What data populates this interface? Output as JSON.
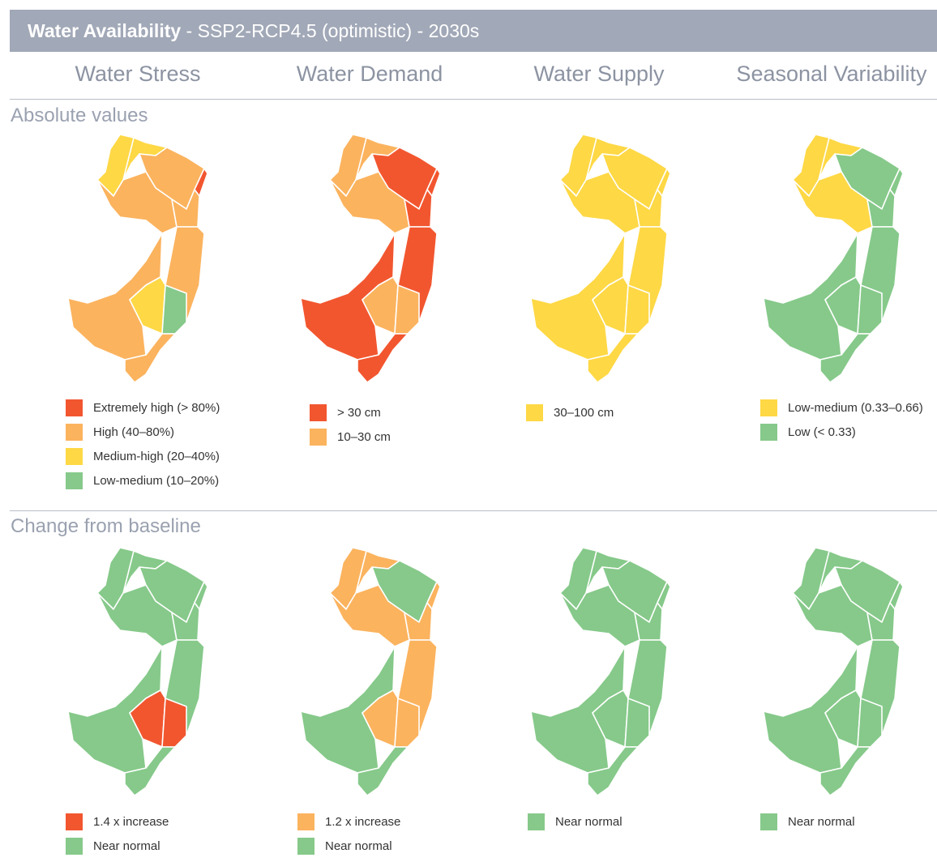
{
  "header": {
    "title_bold": "Water Availability",
    "title_rest": " - SSP2-RCP4.5 (optimistic) - 2030s"
  },
  "columns": [
    "Water Stress",
    "Water Demand",
    "Water Supply",
    "Seasonal Variability"
  ],
  "sections": {
    "absolute": "Absolute values",
    "change": "Change from baseline"
  },
  "colors": {
    "extremely_high": "#f2562f",
    "high": "#fbb35e",
    "medium_high": "#fed845",
    "low_medium": "#86c98a",
    "header_bg": "#a1a8b7",
    "region_border": "#ffffff"
  },
  "map_region_names": [
    "northwest",
    "north-top",
    "northeast",
    "hudson-strip",
    "central-west",
    "central-north",
    "east",
    "southwest",
    "south-center",
    "south-east",
    "cape"
  ],
  "maps": {
    "absolute": [
      {
        "northwest": "medium_high",
        "north-top": "medium_high",
        "northeast": "high",
        "hudson-strip": "extremely_high",
        "central-west": "high",
        "central-north": "high",
        "east": "high",
        "southwest": "high",
        "south-center": "medium_high",
        "south-east": "low_medium",
        "cape": "high"
      },
      {
        "northwest": "high",
        "north-top": "high",
        "northeast": "extremely_high",
        "hudson-strip": "extremely_high",
        "central-west": "high",
        "central-north": "extremely_high",
        "east": "extremely_high",
        "southwest": "extremely_high",
        "south-center": "high",
        "south-east": "high",
        "cape": "extremely_high"
      },
      {
        "northwest": "medium_high",
        "north-top": "medium_high",
        "northeast": "medium_high",
        "hudson-strip": "medium_high",
        "central-west": "medium_high",
        "central-north": "medium_high",
        "east": "medium_high",
        "southwest": "medium_high",
        "south-center": "medium_high",
        "south-east": "medium_high",
        "cape": "medium_high"
      },
      {
        "northwest": "medium_high",
        "north-top": "medium_high",
        "northeast": "low_medium",
        "hudson-strip": "low_medium",
        "central-west": "medium_high",
        "central-north": "low_medium",
        "east": "low_medium",
        "southwest": "low_medium",
        "south-center": "low_medium",
        "south-east": "low_medium",
        "cape": "low_medium"
      }
    ],
    "change": [
      {
        "northwest": "low_medium",
        "north-top": "low_medium",
        "northeast": "low_medium",
        "hudson-strip": "low_medium",
        "central-west": "low_medium",
        "central-north": "low_medium",
        "east": "low_medium",
        "southwest": "low_medium",
        "south-center": "extremely_high",
        "south-east": "extremely_high",
        "cape": "low_medium"
      },
      {
        "northwest": "high",
        "north-top": "high",
        "northeast": "low_medium",
        "hudson-strip": "high",
        "central-west": "high",
        "central-north": "high",
        "east": "high",
        "southwest": "low_medium",
        "south-center": "high",
        "south-east": "high",
        "cape": "low_medium"
      },
      {
        "northwest": "low_medium",
        "north-top": "low_medium",
        "northeast": "low_medium",
        "hudson-strip": "low_medium",
        "central-west": "low_medium",
        "central-north": "low_medium",
        "east": "low_medium",
        "southwest": "low_medium",
        "south-center": "low_medium",
        "south-east": "low_medium",
        "cape": "low_medium"
      },
      {
        "northwest": "low_medium",
        "north-top": "low_medium",
        "northeast": "low_medium",
        "hudson-strip": "low_medium",
        "central-west": "low_medium",
        "central-north": "low_medium",
        "east": "low_medium",
        "southwest": "low_medium",
        "south-center": "low_medium",
        "south-east": "low_medium",
        "cape": "low_medium"
      }
    ]
  },
  "legends": {
    "absolute": [
      [
        {
          "color": "#f2562f",
          "label": "Extremely high (> 80%)"
        },
        {
          "color": "#fbb35e",
          "label": "High (40–80%)"
        },
        {
          "color": "#fed845",
          "label": "Medium-high (20–40%)"
        },
        {
          "color": "#86c98a",
          "label": "Low-medium (10–20%)"
        }
      ],
      [
        {
          "color": "#f2562f",
          "label": "> 30 cm"
        },
        {
          "color": "#fbb35e",
          "label": "10–30 cm"
        }
      ],
      [
        {
          "color": "#fed845",
          "label": "30–100 cm"
        }
      ],
      [
        {
          "color": "#fed845",
          "label": "Low-medium (0.33–0.66)"
        },
        {
          "color": "#86c98a",
          "label": "Low (< 0.33)"
        }
      ]
    ],
    "change": [
      [
        {
          "color": "#f2562f",
          "label": "1.4 x increase"
        },
        {
          "color": "#86c98a",
          "label": "Near normal"
        }
      ],
      [
        {
          "color": "#fbb35e",
          "label": "1.2 x increase"
        },
        {
          "color": "#86c98a",
          "label": "Near normal"
        }
      ],
      [
        {
          "color": "#86c98a",
          "label": "Near normal"
        }
      ],
      [
        {
          "color": "#86c98a",
          "label": "Near normal"
        }
      ]
    ]
  }
}
